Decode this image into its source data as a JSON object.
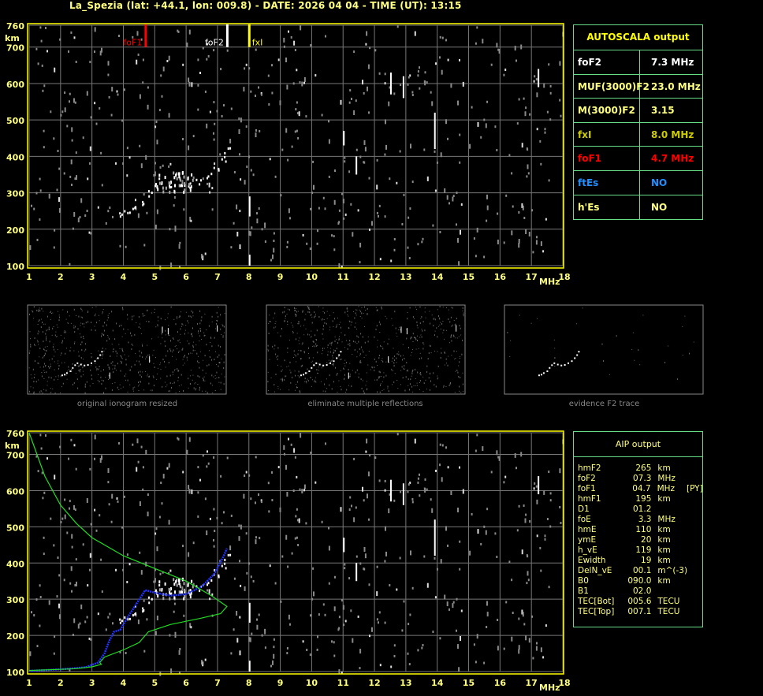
{
  "title": "La_Spezia (lat: +44.1, lon: 009.8) - DATE: 2026 04 04 - TIME (UT): 13:15",
  "colors": {
    "axis": "#ffff80",
    "frame": "#ffff00",
    "grid": "#777777",
    "panel_border": "#66dd88",
    "foF1": "#ff0000",
    "foF2": "#ffffff",
    "fxI": "#ffff00",
    "ftEs": "#1e90ff",
    "trace_blue": "#2233ff",
    "profile_green": "#22dd22"
  },
  "markers": [
    {
      "label": "foF1",
      "freq": 4.7,
      "color": "#ff0000"
    },
    {
      "label": "foF2",
      "freq": 7.3,
      "color": "#ffffff"
    },
    {
      "label": "fxI",
      "freq": 8.0,
      "color": "#ffff00"
    }
  ],
  "autoscala": {
    "title": "AUTOSCALA output",
    "rows": [
      {
        "key": "foF2",
        "value": "7.3 MHz",
        "color": "#ffffff"
      },
      {
        "key": "MUF(3000)F2",
        "value": "23.0 MHz",
        "color": "#ffff80"
      },
      {
        "key": "M(3000)F2",
        "value": "3.15",
        "color": "#ffff80"
      },
      {
        "key": "fxI",
        "value": "8.0 MHz",
        "color": "#cccc00"
      },
      {
        "key": "foF1",
        "value": "4.7 MHz",
        "color": "#ff0000"
      },
      {
        "key": "ftEs",
        "value": "NO",
        "color": "#1e90ff"
      },
      {
        "key": "h'Es",
        "value": "NO",
        "color": "#ffff80"
      }
    ]
  },
  "aip": {
    "title": "AIP output",
    "rows": [
      {
        "key": "hmF2",
        "value": "265",
        "unit": "km",
        "flag": ""
      },
      {
        "key": "foF2",
        "value": "07.3",
        "unit": "MHz",
        "flag": ""
      },
      {
        "key": "foF1",
        "value": "04.7",
        "unit": "MHz",
        "flag": "[PY]"
      },
      {
        "key": "hmF1",
        "value": "195",
        "unit": "km",
        "flag": ""
      },
      {
        "key": "D1",
        "value": "01.2",
        "unit": "",
        "flag": ""
      },
      {
        "key": "foE",
        "value": "3.3",
        "unit": "MHz",
        "flag": ""
      },
      {
        "key": "hmE",
        "value": "110",
        "unit": "km",
        "flag": ""
      },
      {
        "key": "ymE",
        "value": "20",
        "unit": "km",
        "flag": ""
      },
      {
        "key": "h_vE",
        "value": "119",
        "unit": "km",
        "flag": ""
      },
      {
        "key": "Ewidth",
        "value": "19",
        "unit": "km",
        "flag": ""
      },
      {
        "key": "DelN_vE",
        "value": "00.1",
        "unit": "m^(-3)",
        "flag": ""
      },
      {
        "key": "B0",
        "value": "090.0",
        "unit": "km",
        "flag": ""
      },
      {
        "key": "B1",
        "value": "02.0",
        "unit": "",
        "flag": ""
      },
      {
        "key": "TEC[Bot]",
        "value": "005.6",
        "unit": "TECU",
        "flag": ""
      },
      {
        "key": "TEC[Top]",
        "value": "007.1",
        "unit": "TECU",
        "flag": ""
      }
    ]
  },
  "thumbnails": [
    {
      "caption": "original ionogram resized"
    },
    {
      "caption": "eliminate multiple reflections"
    },
    {
      "caption": "evidence F2 trace"
    }
  ],
  "chart_data": [
    {
      "type": "scatter",
      "title": "",
      "xlabel": "MHz",
      "ylabel": "km",
      "xlim": [
        1,
        18
      ],
      "ylim": [
        100,
        760
      ],
      "x_ticks": [
        "1",
        "2",
        "3",
        "4",
        "5",
        "6",
        "7",
        "8",
        "9",
        "10",
        "11",
        "12",
        "13",
        "14",
        "15",
        "16",
        "17",
        "18"
      ],
      "y_ticks": [
        "100",
        "200",
        "300",
        "400",
        "500",
        "600",
        "700",
        "760"
      ],
      "grid": true,
      "series": [
        {
          "name": "",
          "color": "#ffffff",
          "points": [
            [
              3.9,
              245
            ],
            [
              4.1,
              250
            ],
            [
              4.3,
              262
            ],
            [
              4.6,
              275
            ],
            [
              4.8,
              300
            ],
            [
              5.0,
              320
            ],
            [
              5.2,
              335
            ],
            [
              5.5,
              325
            ],
            [
              5.8,
              318
            ],
            [
              6.1,
              322
            ],
            [
              6.4,
              335
            ],
            [
              6.7,
              350
            ],
            [
              6.95,
              372
            ],
            [
              7.15,
              395
            ],
            [
              7.3,
              420
            ]
          ]
        }
      ]
    },
    {
      "type": "line",
      "title": "",
      "xlabel": "MHz",
      "ylabel": "km",
      "xlim": [
        1,
        18
      ],
      "ylim": [
        100,
        760
      ],
      "x_ticks": [
        "1",
        "2",
        "3",
        "4",
        "5",
        "6",
        "7",
        "8",
        "9",
        "10",
        "11",
        "12",
        "13",
        "14",
        "15",
        "16",
        "17",
        "18"
      ],
      "y_ticks": [
        "100",
        "200",
        "300",
        "400",
        "500",
        "600",
        "700",
        "760"
      ],
      "grid": true,
      "series": [
        {
          "name": "",
          "color": "#2233ff",
          "points": [
            [
              1,
              102
            ],
            [
              2,
              106
            ],
            [
              2.8,
              112
            ],
            [
              3.2,
              125
            ],
            [
              3.4,
              150
            ],
            [
              3.55,
              185
            ],
            [
              3.7,
              210
            ],
            [
              3.9,
              215
            ],
            [
              4.1,
              245
            ],
            [
              4.4,
              285
            ],
            [
              4.7,
              325
            ],
            [
              5.0,
              318
            ],
            [
              5.5,
              310
            ],
            [
              6.0,
              314
            ],
            [
              6.5,
              335
            ],
            [
              6.9,
              370
            ],
            [
              7.2,
              420
            ],
            [
              7.3,
              440
            ]
          ]
        },
        {
          "name": "",
          "color": "#22dd22",
          "points": [
            [
              1,
              760
            ],
            [
              1.5,
              640
            ],
            [
              2,
              560
            ],
            [
              2.5,
              510
            ],
            [
              3,
              470
            ],
            [
              4,
              420
            ],
            [
              5,
              385
            ],
            [
              6,
              350
            ],
            [
              6.8,
              310
            ],
            [
              7.3,
              280
            ],
            [
              7.1,
              260
            ],
            [
              6.5,
              248
            ],
            [
              5.5,
              230
            ],
            [
              4.8,
              210
            ],
            [
              4.65,
              195
            ],
            [
              4.5,
              180
            ],
            [
              4,
              160
            ],
            [
              3.4,
              140
            ],
            [
              3.25,
              125
            ],
            [
              3.3,
              120
            ],
            [
              3.0,
              113
            ],
            [
              2.5,
              108
            ],
            [
              2,
              106
            ],
            [
              1,
              103
            ]
          ]
        }
      ]
    }
  ]
}
